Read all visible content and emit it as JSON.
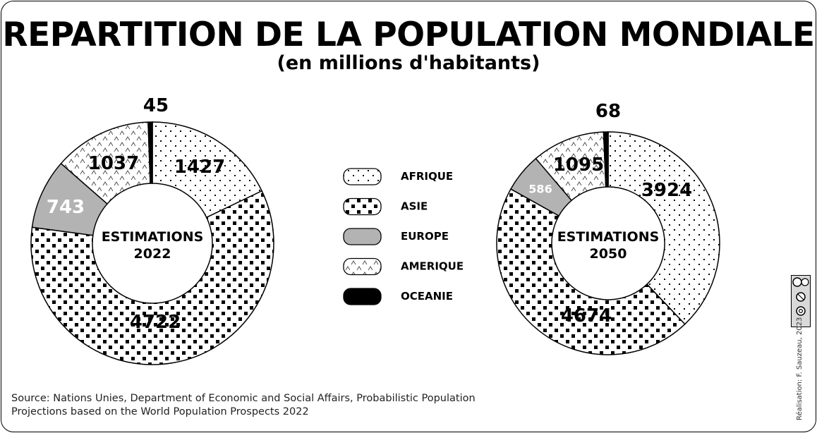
{
  "title": "REPARTITION DE LA POPULATION MONDIALE",
  "subtitle": "(en millions d'habitants)",
  "source_text": "Source: Nations Unies, Department of Economic and Social Affairs, Probabilistic Population Projections based on the World Population Prospects 2022",
  "credit": "Réalisation: F. Sauzeau, 2023",
  "license": {
    "label": "BY NC SA",
    "icons": [
      "cc-icon",
      "by-icon",
      "nc-icon",
      "sa-icon"
    ]
  },
  "colors": {
    "europe": "#b3b3b3",
    "oceanie": "#000000",
    "outline": "#000000"
  },
  "legend": [
    {
      "label": "AFRIQUE",
      "pattern": "dots"
    },
    {
      "label": "ASIE",
      "pattern": "squares"
    },
    {
      "label": "EUROPE",
      "pattern": "gray"
    },
    {
      "label": "AMERIQUE",
      "pattern": "chevrons"
    },
    {
      "label": "OCEANIE",
      "pattern": "black"
    }
  ],
  "chart_data": [
    {
      "type": "pie",
      "center_label": [
        "ESTIMATIONS",
        "2022"
      ],
      "categories": [
        "AFRIQUE",
        "ASIE",
        "EUROPE",
        "AMERIQUE",
        "OCEANIE"
      ],
      "values": [
        1427,
        4722,
        743,
        1037,
        45
      ],
      "value_labels": [
        "1427",
        "4722",
        "743",
        "1037",
        "45"
      ]
    },
    {
      "type": "pie",
      "center_label": [
        "ESTIMATIONS",
        "2050"
      ],
      "categories": [
        "AFRIQUE",
        "ASIE",
        "EUROPE",
        "AMERIQUE",
        "OCEANIE"
      ],
      "values": [
        3924,
        4674,
        586,
        1095,
        68
      ],
      "value_labels": [
        "3924",
        "4674",
        "586",
        "1095",
        "68"
      ]
    }
  ]
}
